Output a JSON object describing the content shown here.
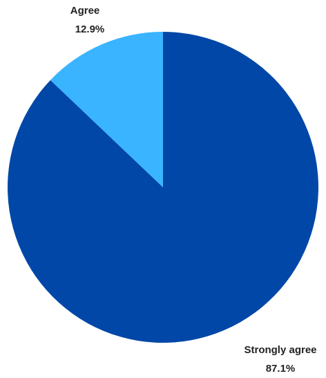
{
  "chart_data": {
    "type": "pie",
    "title": "",
    "slices": [
      {
        "label": "Strongly agree",
        "value": 87.1,
        "value_label": "87.1%",
        "color": "#0047a8"
      },
      {
        "label": "Agree",
        "value": 12.9,
        "value_label": "12.9%",
        "color": "#3ab4ff"
      }
    ],
    "start": "12 o'clock",
    "direction": "clockwise",
    "legend": "none"
  }
}
